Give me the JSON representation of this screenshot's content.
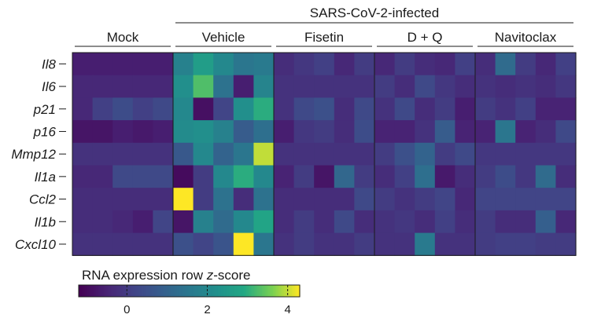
{
  "chart_data": {
    "type": "heatmap",
    "title": "",
    "super_header": "SARS-CoV-2-infected",
    "groups": [
      {
        "label": "Mock",
        "n": 5
      },
      {
        "label": "Vehicle",
        "n": 5
      },
      {
        "label": "Fisetin",
        "n": 5
      },
      {
        "label": "D + Q",
        "n": 5
      },
      {
        "label": "Navitoclax",
        "n": 5
      }
    ],
    "rows": [
      "Il8",
      "Il6",
      "p21",
      "p16",
      "Mmp12",
      "Il1a",
      "Ccl2",
      "Il1b",
      "Cxcl10"
    ],
    "values": [
      [
        -0.6,
        -0.6,
        -0.6,
        -0.6,
        -0.6,
        1.8,
        2.6,
        2.0,
        1.5,
        1.6,
        -0.3,
        -0.1,
        0.1,
        -0.4,
        0.0,
        -0.4,
        0.0,
        -0.3,
        -0.4,
        0.1,
        -0.3,
        1.2,
        0.0,
        -0.4,
        0.1
      ],
      [
        -0.4,
        -0.4,
        -0.4,
        -0.4,
        -0.4,
        2.2,
        3.3,
        1.4,
        -0.6,
        1.9,
        -0.2,
        -0.2,
        -0.2,
        -0.2,
        -0.2,
        0.0,
        -0.3,
        0.3,
        -0.1,
        -0.3,
        -0.2,
        -0.3,
        -0.2,
        -0.3,
        -0.1
      ],
      [
        -0.4,
        0.1,
        0.4,
        0.1,
        0.3,
        2.0,
        -0.9,
        0.2,
        2.2,
        3.0,
        -0.2,
        0.3,
        0.5,
        -0.3,
        0.3,
        -0.2,
        0.3,
        -0.3,
        0.0,
        -0.6,
        0.0,
        -0.2,
        0.1,
        -0.5,
        -0.5
      ],
      [
        -0.8,
        -0.8,
        -0.6,
        -0.7,
        -0.6,
        2.1,
        2.2,
        1.8,
        0.8,
        1.3,
        -0.6,
        -0.1,
        0.0,
        -0.3,
        0.4,
        -0.5,
        -0.5,
        -0.2,
        0.8,
        -0.5,
        -0.5,
        1.5,
        -0.5,
        -0.3,
        0.3
      ],
      [
        -0.2,
        -0.2,
        -0.2,
        -0.2,
        -0.2,
        0.7,
        2.0,
        1.0,
        1.5,
        4.0,
        -0.2,
        -0.2,
        -0.2,
        -0.2,
        -0.2,
        0.0,
        0.5,
        1.0,
        0.0,
        0.3,
        -0.1,
        -0.1,
        -0.1,
        -0.1,
        -0.1
      ],
      [
        -0.4,
        -0.4,
        0.3,
        0.3,
        0.3,
        -1.0,
        0.0,
        2.0,
        3.0,
        2.0,
        -0.5,
        0.0,
        -0.8,
        1.1,
        0.0,
        -0.3,
        0.1,
        1.3,
        -0.7,
        -0.3,
        0.0,
        0.4,
        -0.1,
        1.2,
        -0.3
      ],
      [
        -0.3,
        -0.3,
        -0.3,
        -0.3,
        -0.3,
        4.4,
        0.0,
        1.4,
        -0.3,
        1.4,
        -0.3,
        -0.3,
        -0.3,
        -0.3,
        0.3,
        0.0,
        -0.2,
        0.0,
        0.2,
        -0.4,
        0.2,
        0.2,
        0.2,
        0.2,
        0.2
      ],
      [
        -0.3,
        -0.3,
        -0.4,
        -0.6,
        0.2,
        -0.8,
        1.8,
        1.2,
        2.0,
        2.8,
        -0.3,
        0.0,
        -0.3,
        0.3,
        -0.3,
        -0.2,
        -0.1,
        -0.3,
        0.1,
        -0.3,
        0.0,
        -0.3,
        -0.3,
        0.9,
        -0.4
      ],
      [
        -0.2,
        -0.2,
        -0.2,
        -0.2,
        -0.2,
        0.5,
        0.2,
        0.6,
        4.4,
        1.5,
        -0.2,
        0.0,
        -0.2,
        -0.2,
        0.0,
        -0.2,
        -0.2,
        1.6,
        -0.2,
        -0.2,
        0.0,
        0.1,
        0.1,
        0.0,
        0.0
      ]
    ],
    "colorbar": {
      "title_prefix": "RNA expression row ",
      "title_italic": "z",
      "title_suffix": "-score",
      "min": -1.2,
      "max": 4.3,
      "ticks": [
        0,
        2,
        4
      ],
      "tick_labels": [
        "0",
        "2",
        "4"
      ],
      "colormap": "viridis"
    }
  }
}
